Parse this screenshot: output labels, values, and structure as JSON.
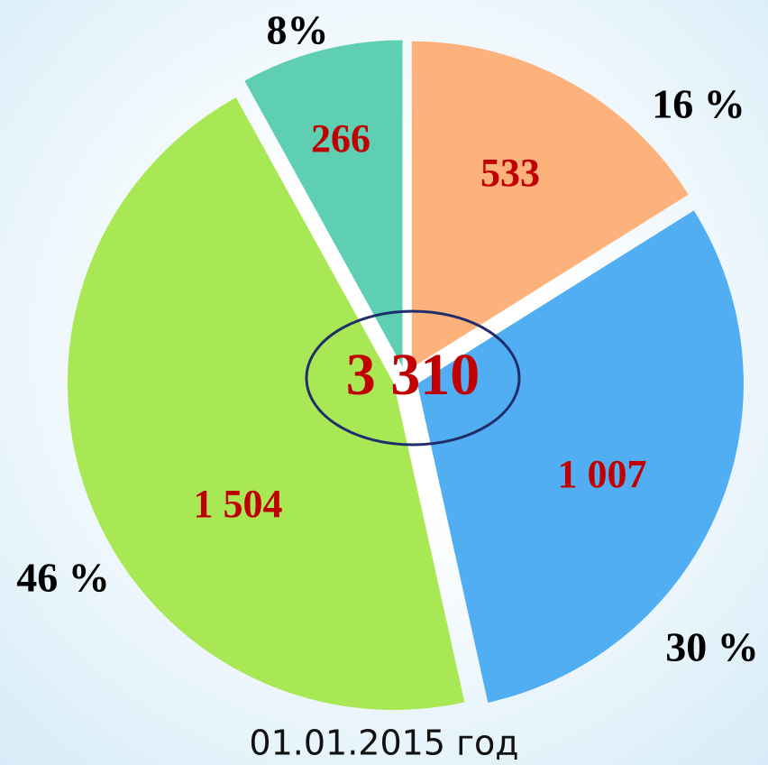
{
  "chart_data": {
    "type": "pie",
    "values": [
      533,
      1007,
      1504,
      266
    ],
    "value_labels": [
      "533",
      "1 007",
      "1 504",
      "266"
    ],
    "percent_labels": [
      "16 %",
      "30 %",
      "46 %",
      "8%"
    ],
    "colors": [
      "#fdb27b",
      "#52aef2",
      "#a8e854",
      "#5ecfb2"
    ],
    "center_label": "3 310",
    "caption": "01.01.2015 год"
  }
}
